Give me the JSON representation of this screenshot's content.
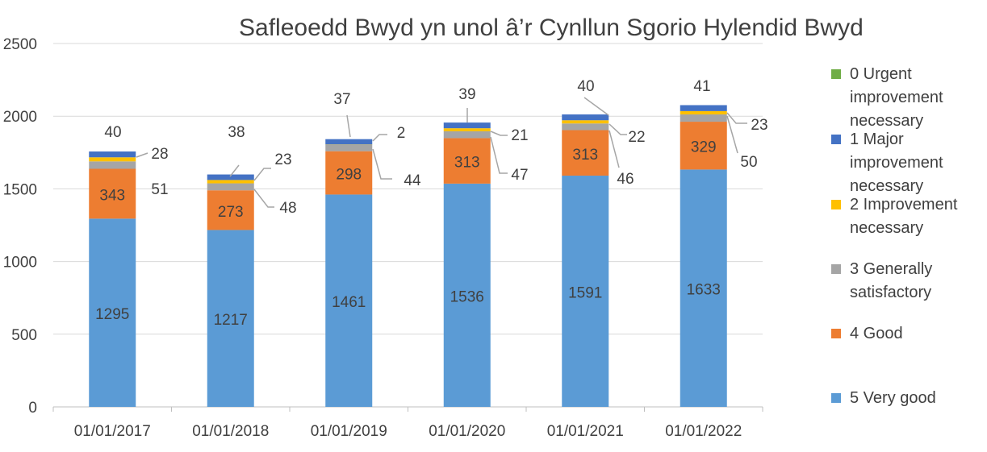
{
  "chart_data": {
    "type": "bar",
    "stacked": true,
    "title": "Safleoedd Bwyd yn unol â’r Cynllun Sgorio Hylendid Bwyd",
    "categories": [
      "01/01/2017",
      "01/01/2018",
      "01/01/2019",
      "01/01/2020",
      "01/01/2021",
      "01/01/2022"
    ],
    "series": [
      {
        "name": "5 Very good",
        "color": "#5b9bd5",
        "values": [
          1295,
          1217,
          1461,
          1536,
          1591,
          1633
        ]
      },
      {
        "name": "4 Good",
        "color": "#ed7d31",
        "values": [
          343,
          273,
          298,
          313,
          313,
          329
        ]
      },
      {
        "name": "3 Generally satisfactory",
        "color": "#a5a5a5",
        "values": [
          51,
          48,
          44,
          47,
          46,
          50
        ]
      },
      {
        "name": "2 Improvement necessary",
        "color": "#ffc000",
        "values": [
          28,
          23,
          2,
          21,
          22,
          23
        ]
      },
      {
        "name": "1 Major improvement necessary",
        "color": "#4472c4",
        "values": [
          40,
          38,
          37,
          39,
          40,
          41
        ]
      },
      {
        "name": "0 Urgent improvement necessary",
        "color": "#70ad47",
        "values": [
          0,
          0,
          0,
          0,
          0,
          0
        ]
      }
    ],
    "ylim": [
      0,
      2500
    ],
    "yticks": [
      0,
      500,
      1000,
      1500,
      2000,
      2500
    ],
    "grid": true,
    "legend_position": "right",
    "xlabel": "",
    "ylabel": ""
  },
  "legend_order": [
    "0 Urgent improvement necessary",
    "1 Major improvement necessary",
    "2 Improvement necessary",
    "3 Generally satisfactory",
    "4 Good",
    "5 Very good"
  ]
}
